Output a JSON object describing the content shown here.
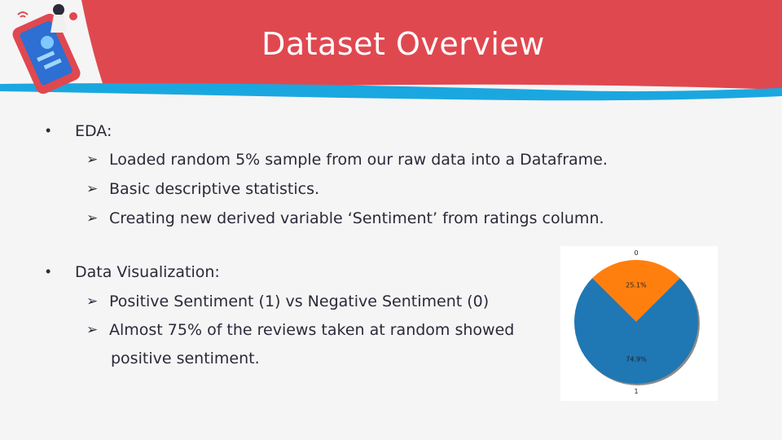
{
  "slide": {
    "title": "Dataset Overview",
    "colors": {
      "header_red": "#e04850",
      "accent_cyan": "#1aa7e0",
      "background": "#f5f5f5",
      "text": "#2a2a3a"
    }
  },
  "bullets": [
    {
      "text": "EDA:",
      "subitems": [
        "Loaded random 5% sample from our raw data into a Dataframe.",
        "Basic descriptive statistics.",
        "Creating new derived variable ‘Sentiment’ from ratings column."
      ]
    },
    {
      "text": "Data Visualization:",
      "subitems": [
        "Positive Sentiment (1) vs  Negative Sentiment (0)",
        "Almost 75% of the reviews taken at random showed",
        "positive sentiment."
      ]
    }
  ],
  "chart_data": {
    "type": "pie",
    "categories": [
      "0",
      "1"
    ],
    "values": [
      25.1,
      74.9
    ],
    "value_labels": [
      "25.1%",
      "74.9%"
    ],
    "colors": [
      "#ff7f0e",
      "#1f77b4"
    ],
    "title": ""
  }
}
